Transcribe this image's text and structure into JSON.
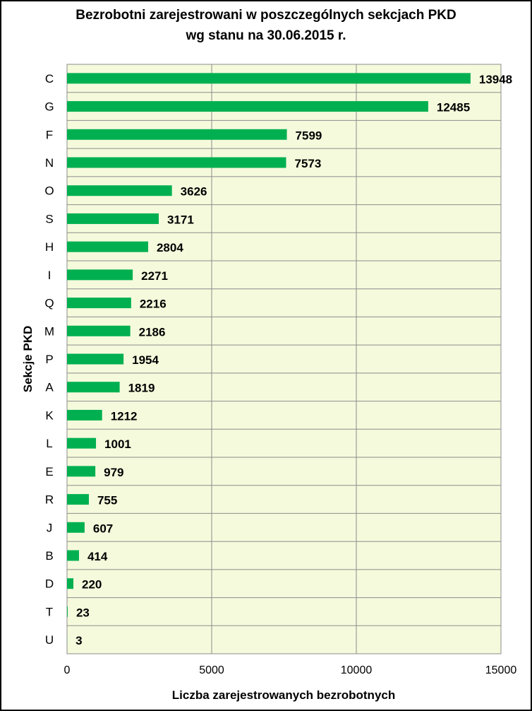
{
  "chart_data": {
    "type": "bar",
    "orientation": "horizontal",
    "title": "Bezrobotni zarejestrowani w poszczególnych sekcjach PKD",
    "subtitle": "wg stanu na 30.06.2015 r.",
    "xlabel": "Liczba zarejestrowanych bezrobotnych",
    "ylabel": "Sekcje PKD",
    "xlim": [
      0,
      15000
    ],
    "xticks": [
      0,
      5000,
      10000,
      15000
    ],
    "categories": [
      "C",
      "G",
      "F",
      "N",
      "O",
      "S",
      "H",
      "I",
      "Q",
      "M",
      "P",
      "A",
      "K",
      "L",
      "E",
      "R",
      "J",
      "B",
      "D",
      "T",
      "U"
    ],
    "values": [
      13948,
      12485,
      7599,
      7573,
      3626,
      3171,
      2804,
      2271,
      2216,
      2186,
      1954,
      1819,
      1212,
      1001,
      979,
      755,
      607,
      414,
      220,
      23,
      3
    ],
    "grid": "vertical",
    "legend": "none",
    "colors": {
      "bar": "#00b050",
      "plot_background": "#f5fadc",
      "grid": "#8c8c8c"
    }
  }
}
